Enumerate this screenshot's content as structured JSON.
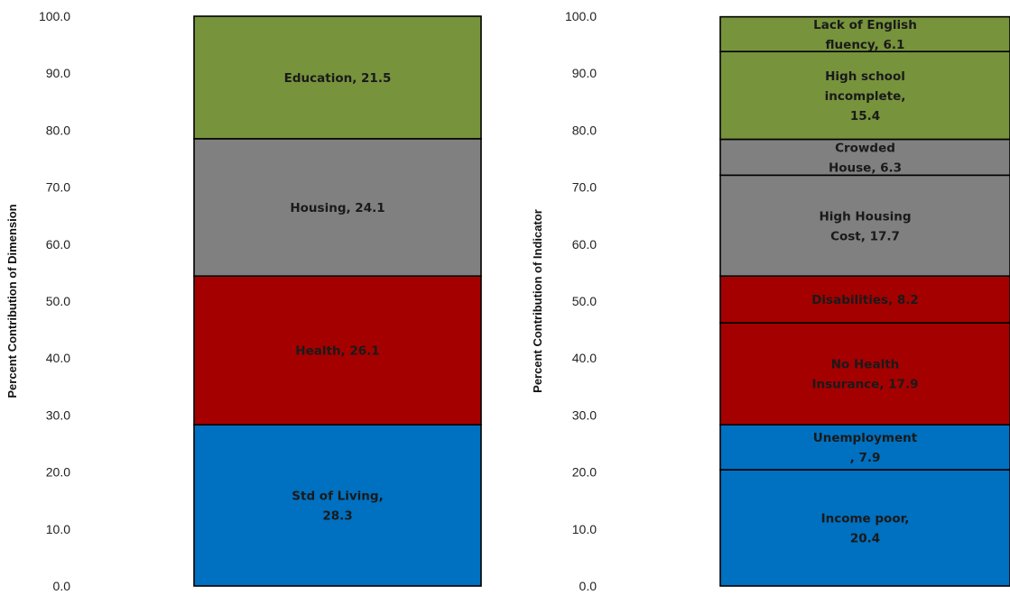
{
  "chart_data": [
    {
      "type": "bar",
      "subtype": "stacked",
      "ylabel": "Percent Contribution of Dimension",
      "ylim": [
        0,
        100
      ],
      "yticks": [
        "0.0",
        "10.0",
        "20.0",
        "30.0",
        "40.0",
        "50.0",
        "60.0",
        "70.0",
        "80.0",
        "90.0",
        "100.0"
      ],
      "grid": false,
      "series": [
        {
          "name": "Std of Living",
          "value": 28.3,
          "label": [
            "Std of Living,",
            "28.3"
          ],
          "color": "#0070C0"
        },
        {
          "name": "Health",
          "value": 26.1,
          "label": [
            "Health, 26.1"
          ],
          "color": "#A50000"
        },
        {
          "name": "Housing",
          "value": 24.1,
          "label": [
            "Housing, 24.1"
          ],
          "color": "#808080"
        },
        {
          "name": "Education",
          "value": 21.5,
          "label": [
            "Education, 21.5"
          ],
          "color": "#77933C"
        }
      ]
    },
    {
      "type": "bar",
      "subtype": "stacked",
      "ylabel": "Percent Contribution of Indicator",
      "ylim": [
        0,
        100
      ],
      "yticks": [
        "0.0",
        "10.0",
        "20.0",
        "30.0",
        "40.0",
        "50.0",
        "60.0",
        "70.0",
        "80.0",
        "90.0",
        "100.0"
      ],
      "grid": false,
      "series": [
        {
          "name": "Income poor",
          "value": 20.4,
          "label": [
            "Income poor,",
            "20.4"
          ],
          "color": "#0070C0"
        },
        {
          "name": "Unemployment",
          "value": 7.9,
          "label": [
            "Unemployment",
            ", 7.9"
          ],
          "color": "#0070C0"
        },
        {
          "name": "No Health Insurance",
          "value": 17.9,
          "label": [
            "No Health",
            "Insurance, 17.9"
          ],
          "color": "#A50000"
        },
        {
          "name": "Disabilities",
          "value": 8.2,
          "label": [
            "Disabilities, 8.2"
          ],
          "color": "#A50000"
        },
        {
          "name": "High Housing Cost",
          "value": 17.7,
          "label": [
            "High Housing",
            "Cost, 17.7"
          ],
          "color": "#808080"
        },
        {
          "name": "Crowded House",
          "value": 6.3,
          "label": [
            "Crowded",
            "House, 6.3"
          ],
          "color": "#808080"
        },
        {
          "name": "High school incomplete",
          "value": 15.4,
          "label": [
            "High school",
            "incomplete,",
            "15.4"
          ],
          "color": "#77933C"
        },
        {
          "name": "Lack of English fluency",
          "value": 6.1,
          "label": [
            "Lack of English",
            "fluency, 6.1"
          ],
          "color": "#77933C"
        }
      ]
    }
  ]
}
